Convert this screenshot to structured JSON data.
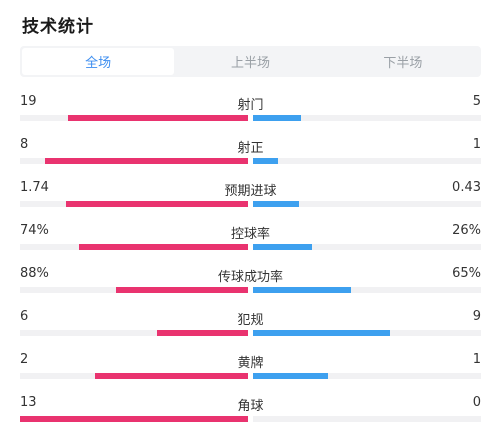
{
  "title": "技术统计",
  "tabs": [
    {
      "label": "全场",
      "active": true
    },
    {
      "label": "上半场",
      "active": false
    },
    {
      "label": "下半场",
      "active": false
    }
  ],
  "colors": {
    "home": "#e9336f",
    "away": "#3da0ef",
    "track": "#f1f1f3",
    "active_tab": "#3d8ef0"
  },
  "stats": [
    {
      "label": "射门",
      "home": "19",
      "away": "5",
      "home_fill": 0.79,
      "away_fill": 0.21
    },
    {
      "label": "射正",
      "home": "8",
      "away": "1",
      "home_fill": 0.89,
      "away_fill": 0.11
    },
    {
      "label": "预期进球",
      "home": "1.74",
      "away": "0.43",
      "home_fill": 0.8,
      "away_fill": 0.2
    },
    {
      "label": "控球率",
      "home": "74%",
      "away": "26%",
      "home_fill": 0.74,
      "away_fill": 0.26
    },
    {
      "label": "传球成功率",
      "home": "88%",
      "away": "65%",
      "home_fill": 0.58,
      "away_fill": 0.43
    },
    {
      "label": "犯规",
      "home": "6",
      "away": "9",
      "home_fill": 0.4,
      "away_fill": 0.6
    },
    {
      "label": "黄牌",
      "home": "2",
      "away": "1",
      "home_fill": 0.67,
      "away_fill": 0.33
    },
    {
      "label": "角球",
      "home": "13",
      "away": "0",
      "home_fill": 1.0,
      "away_fill": 0.0
    }
  ]
}
